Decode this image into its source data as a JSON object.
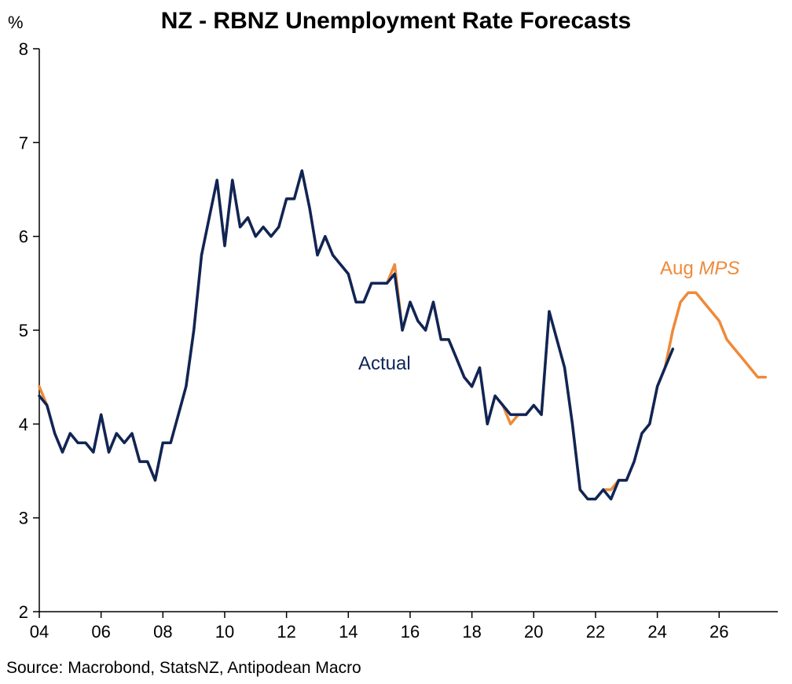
{
  "title": "NZ - RBNZ Unemployment Rate Forecasts",
  "unit": "%",
  "source": "Source: Macrobond, StatsNZ, Antipodean Macro",
  "colors": {
    "actual": "#0E2557",
    "forecast": "#EE8A3A",
    "axis": "#000000"
  },
  "chart_data": {
    "type": "line",
    "title": "NZ - RBNZ Unemployment Rate Forecasts",
    "xlabel": "",
    "ylabel": "%",
    "xlim": [
      2004.0,
      2027.9
    ],
    "ylim": [
      2,
      8
    ],
    "xticks": [
      2004,
      2006,
      2008,
      2010,
      2012,
      2014,
      2016,
      2018,
      2020,
      2022,
      2024,
      2026
    ],
    "xtick_labels": [
      "04",
      "06",
      "08",
      "10",
      "12",
      "14",
      "16",
      "18",
      "20",
      "22",
      "24",
      "26"
    ],
    "yticks": [
      2,
      3,
      4,
      5,
      6,
      7,
      8
    ],
    "ytick_labels": [
      "2",
      "3",
      "4",
      "5",
      "6",
      "7",
      "8"
    ],
    "grid": false,
    "annotations": [
      {
        "series": "actual",
        "text": "Actual",
        "italic_part": ""
      },
      {
        "series": "forecast",
        "text": "Aug ",
        "italic_part": "MPS"
      }
    ],
    "series": [
      {
        "key": "forecast",
        "name": "Aug MPS",
        "x": [
          2004.0,
          2004.25,
          2004.5,
          2004.75,
          2005.0,
          2005.25,
          2005.5,
          2005.75,
          2006.0,
          2006.25,
          2006.5,
          2006.75,
          2007.0,
          2007.25,
          2007.5,
          2007.75,
          2008.0,
          2008.25,
          2008.5,
          2008.75,
          2009.0,
          2009.25,
          2009.5,
          2009.75,
          2010.0,
          2010.25,
          2010.5,
          2010.75,
          2011.0,
          2011.25,
          2011.5,
          2011.75,
          2012.0,
          2012.25,
          2012.5,
          2012.75,
          2013.0,
          2013.25,
          2013.5,
          2013.75,
          2014.0,
          2014.25,
          2014.5,
          2014.75,
          2015.0,
          2015.25,
          2015.5,
          2015.75,
          2016.0,
          2016.25,
          2016.5,
          2016.75,
          2017.0,
          2017.25,
          2017.5,
          2017.75,
          2018.0,
          2018.25,
          2018.5,
          2018.75,
          2019.0,
          2019.25,
          2019.5,
          2019.75,
          2020.0,
          2020.25,
          2020.5,
          2020.75,
          2021.0,
          2021.25,
          2021.5,
          2021.75,
          2022.0,
          2022.25,
          2022.5,
          2022.75,
          2023.0,
          2023.25,
          2023.5,
          2023.75,
          2024.0,
          2024.25,
          2024.5,
          2024.75,
          2025.0,
          2025.25,
          2025.5,
          2025.75,
          2026.0,
          2026.25,
          2026.5,
          2026.75,
          2027.0,
          2027.25,
          2027.5
        ],
        "y": [
          4.4,
          4.2,
          3.9,
          3.7,
          3.9,
          3.8,
          3.8,
          3.7,
          4.1,
          3.7,
          3.9,
          3.8,
          3.9,
          3.6,
          3.6,
          3.4,
          3.8,
          3.8,
          4.1,
          4.4,
          5.0,
          5.8,
          6.2,
          6.6,
          5.9,
          6.6,
          6.1,
          6.2,
          6.0,
          6.1,
          6.0,
          6.1,
          6.4,
          6.4,
          6.7,
          6.3,
          5.8,
          6.0,
          5.8,
          5.7,
          5.6,
          5.3,
          5.3,
          5.5,
          5.5,
          5.5,
          5.7,
          5.0,
          5.3,
          5.1,
          5.0,
          5.3,
          4.9,
          4.9,
          4.7,
          4.5,
          4.4,
          4.6,
          4.0,
          4.3,
          4.2,
          4.0,
          4.1,
          4.1,
          4.2,
          4.1,
          5.2,
          4.9,
          4.6,
          4.0,
          3.3,
          3.2,
          3.2,
          3.3,
          3.3,
          3.4,
          3.4,
          3.6,
          3.9,
          4.0,
          4.4,
          4.6,
          5.0,
          5.3,
          5.4,
          5.4,
          5.3,
          5.2,
          5.1,
          4.9,
          4.8,
          4.7,
          4.6,
          4.5,
          4.5
        ]
      },
      {
        "key": "actual",
        "name": "Actual",
        "x": [
          2004.0,
          2004.25,
          2004.5,
          2004.75,
          2005.0,
          2005.25,
          2005.5,
          2005.75,
          2006.0,
          2006.25,
          2006.5,
          2006.75,
          2007.0,
          2007.25,
          2007.5,
          2007.75,
          2008.0,
          2008.25,
          2008.5,
          2008.75,
          2009.0,
          2009.25,
          2009.5,
          2009.75,
          2010.0,
          2010.25,
          2010.5,
          2010.75,
          2011.0,
          2011.25,
          2011.5,
          2011.75,
          2012.0,
          2012.25,
          2012.5,
          2012.75,
          2013.0,
          2013.25,
          2013.5,
          2013.75,
          2014.0,
          2014.25,
          2014.5,
          2014.75,
          2015.0,
          2015.25,
          2015.5,
          2015.75,
          2016.0,
          2016.25,
          2016.5,
          2016.75,
          2017.0,
          2017.25,
          2017.5,
          2017.75,
          2018.0,
          2018.25,
          2018.5,
          2018.75,
          2019.0,
          2019.25,
          2019.5,
          2019.75,
          2020.0,
          2020.25,
          2020.5,
          2020.75,
          2021.0,
          2021.25,
          2021.5,
          2021.75,
          2022.0,
          2022.25,
          2022.5,
          2022.75,
          2023.0,
          2023.25,
          2023.5,
          2023.75,
          2024.0,
          2024.25,
          2024.5
        ],
        "y": [
          4.3,
          4.2,
          3.9,
          3.7,
          3.9,
          3.8,
          3.8,
          3.7,
          4.1,
          3.7,
          3.9,
          3.8,
          3.9,
          3.6,
          3.6,
          3.4,
          3.8,
          3.8,
          4.1,
          4.4,
          5.0,
          5.8,
          6.2,
          6.6,
          5.9,
          6.6,
          6.1,
          6.2,
          6.0,
          6.1,
          6.0,
          6.1,
          6.4,
          6.4,
          6.7,
          6.3,
          5.8,
          6.0,
          5.8,
          5.7,
          5.6,
          5.3,
          5.3,
          5.5,
          5.5,
          5.5,
          5.6,
          5.0,
          5.3,
          5.1,
          5.0,
          5.3,
          4.9,
          4.9,
          4.7,
          4.5,
          4.4,
          4.6,
          4.0,
          4.3,
          4.2,
          4.1,
          4.1,
          4.1,
          4.2,
          4.1,
          5.2,
          4.9,
          4.6,
          4.0,
          3.3,
          3.2,
          3.2,
          3.3,
          3.2,
          3.4,
          3.4,
          3.6,
          3.9,
          4.0,
          4.4,
          4.6,
          4.8
        ]
      }
    ]
  }
}
